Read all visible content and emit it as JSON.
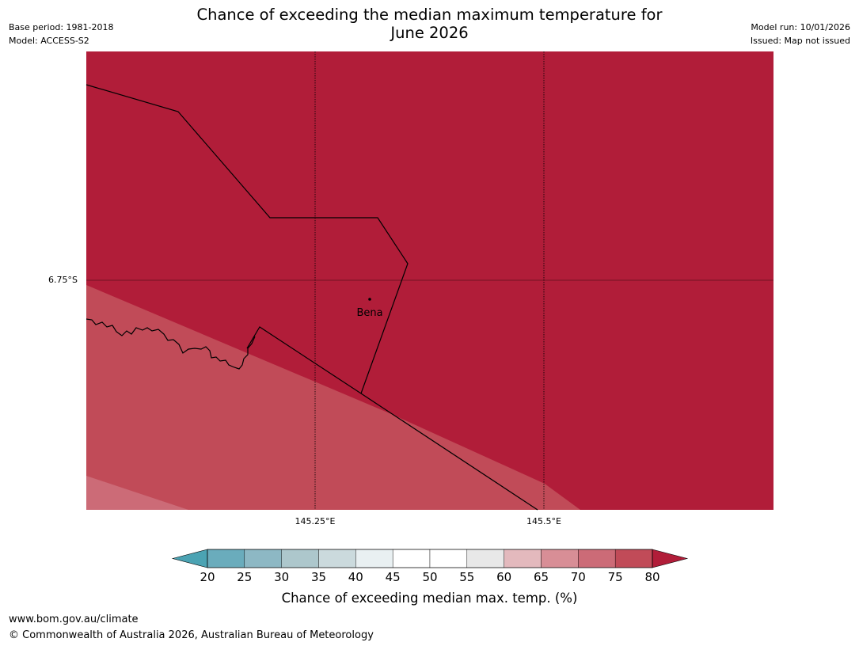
{
  "header": {
    "title_line1": "Chance of exceeding the median maximum temperature for",
    "title_line2": "June 2026",
    "base_period": "Base period: 1981-2018",
    "model": "Model: ACCESS-S2",
    "model_run": "Model run: 10/01/2026",
    "issued": "Issued: Map not issued"
  },
  "map": {
    "lat_label": "6.75°S",
    "lon_labels": [
      "145.25°E",
      "145.5°E"
    ],
    "place": "Bena",
    "fill_colors": {
      "above_80": "#b11d39",
      "75_80": "#c14b58",
      "70_75": "#cc6b77"
    }
  },
  "colorbar": {
    "title": "Chance of exceeding median max. temp. (%)",
    "ticks": [
      "20",
      "25",
      "30",
      "35",
      "40",
      "45",
      "50",
      "55",
      "60",
      "65",
      "70",
      "75",
      "80"
    ],
    "colors": [
      "#4ba3b3",
      "#6aacbc",
      "#8db8c4",
      "#adc7cc",
      "#cbdadd",
      "#e9f0f2",
      "#ffffff",
      "#ffffff",
      "#e8e8e8",
      "#e3b9bd",
      "#d88e96",
      "#cc6b77",
      "#c14b58",
      "#b11d39"
    ]
  },
  "footer": {
    "url": "www.bom.gov.au/climate",
    "copyright": "© Commonwealth of Australia 2026, Australian Bureau of Meteorology"
  }
}
